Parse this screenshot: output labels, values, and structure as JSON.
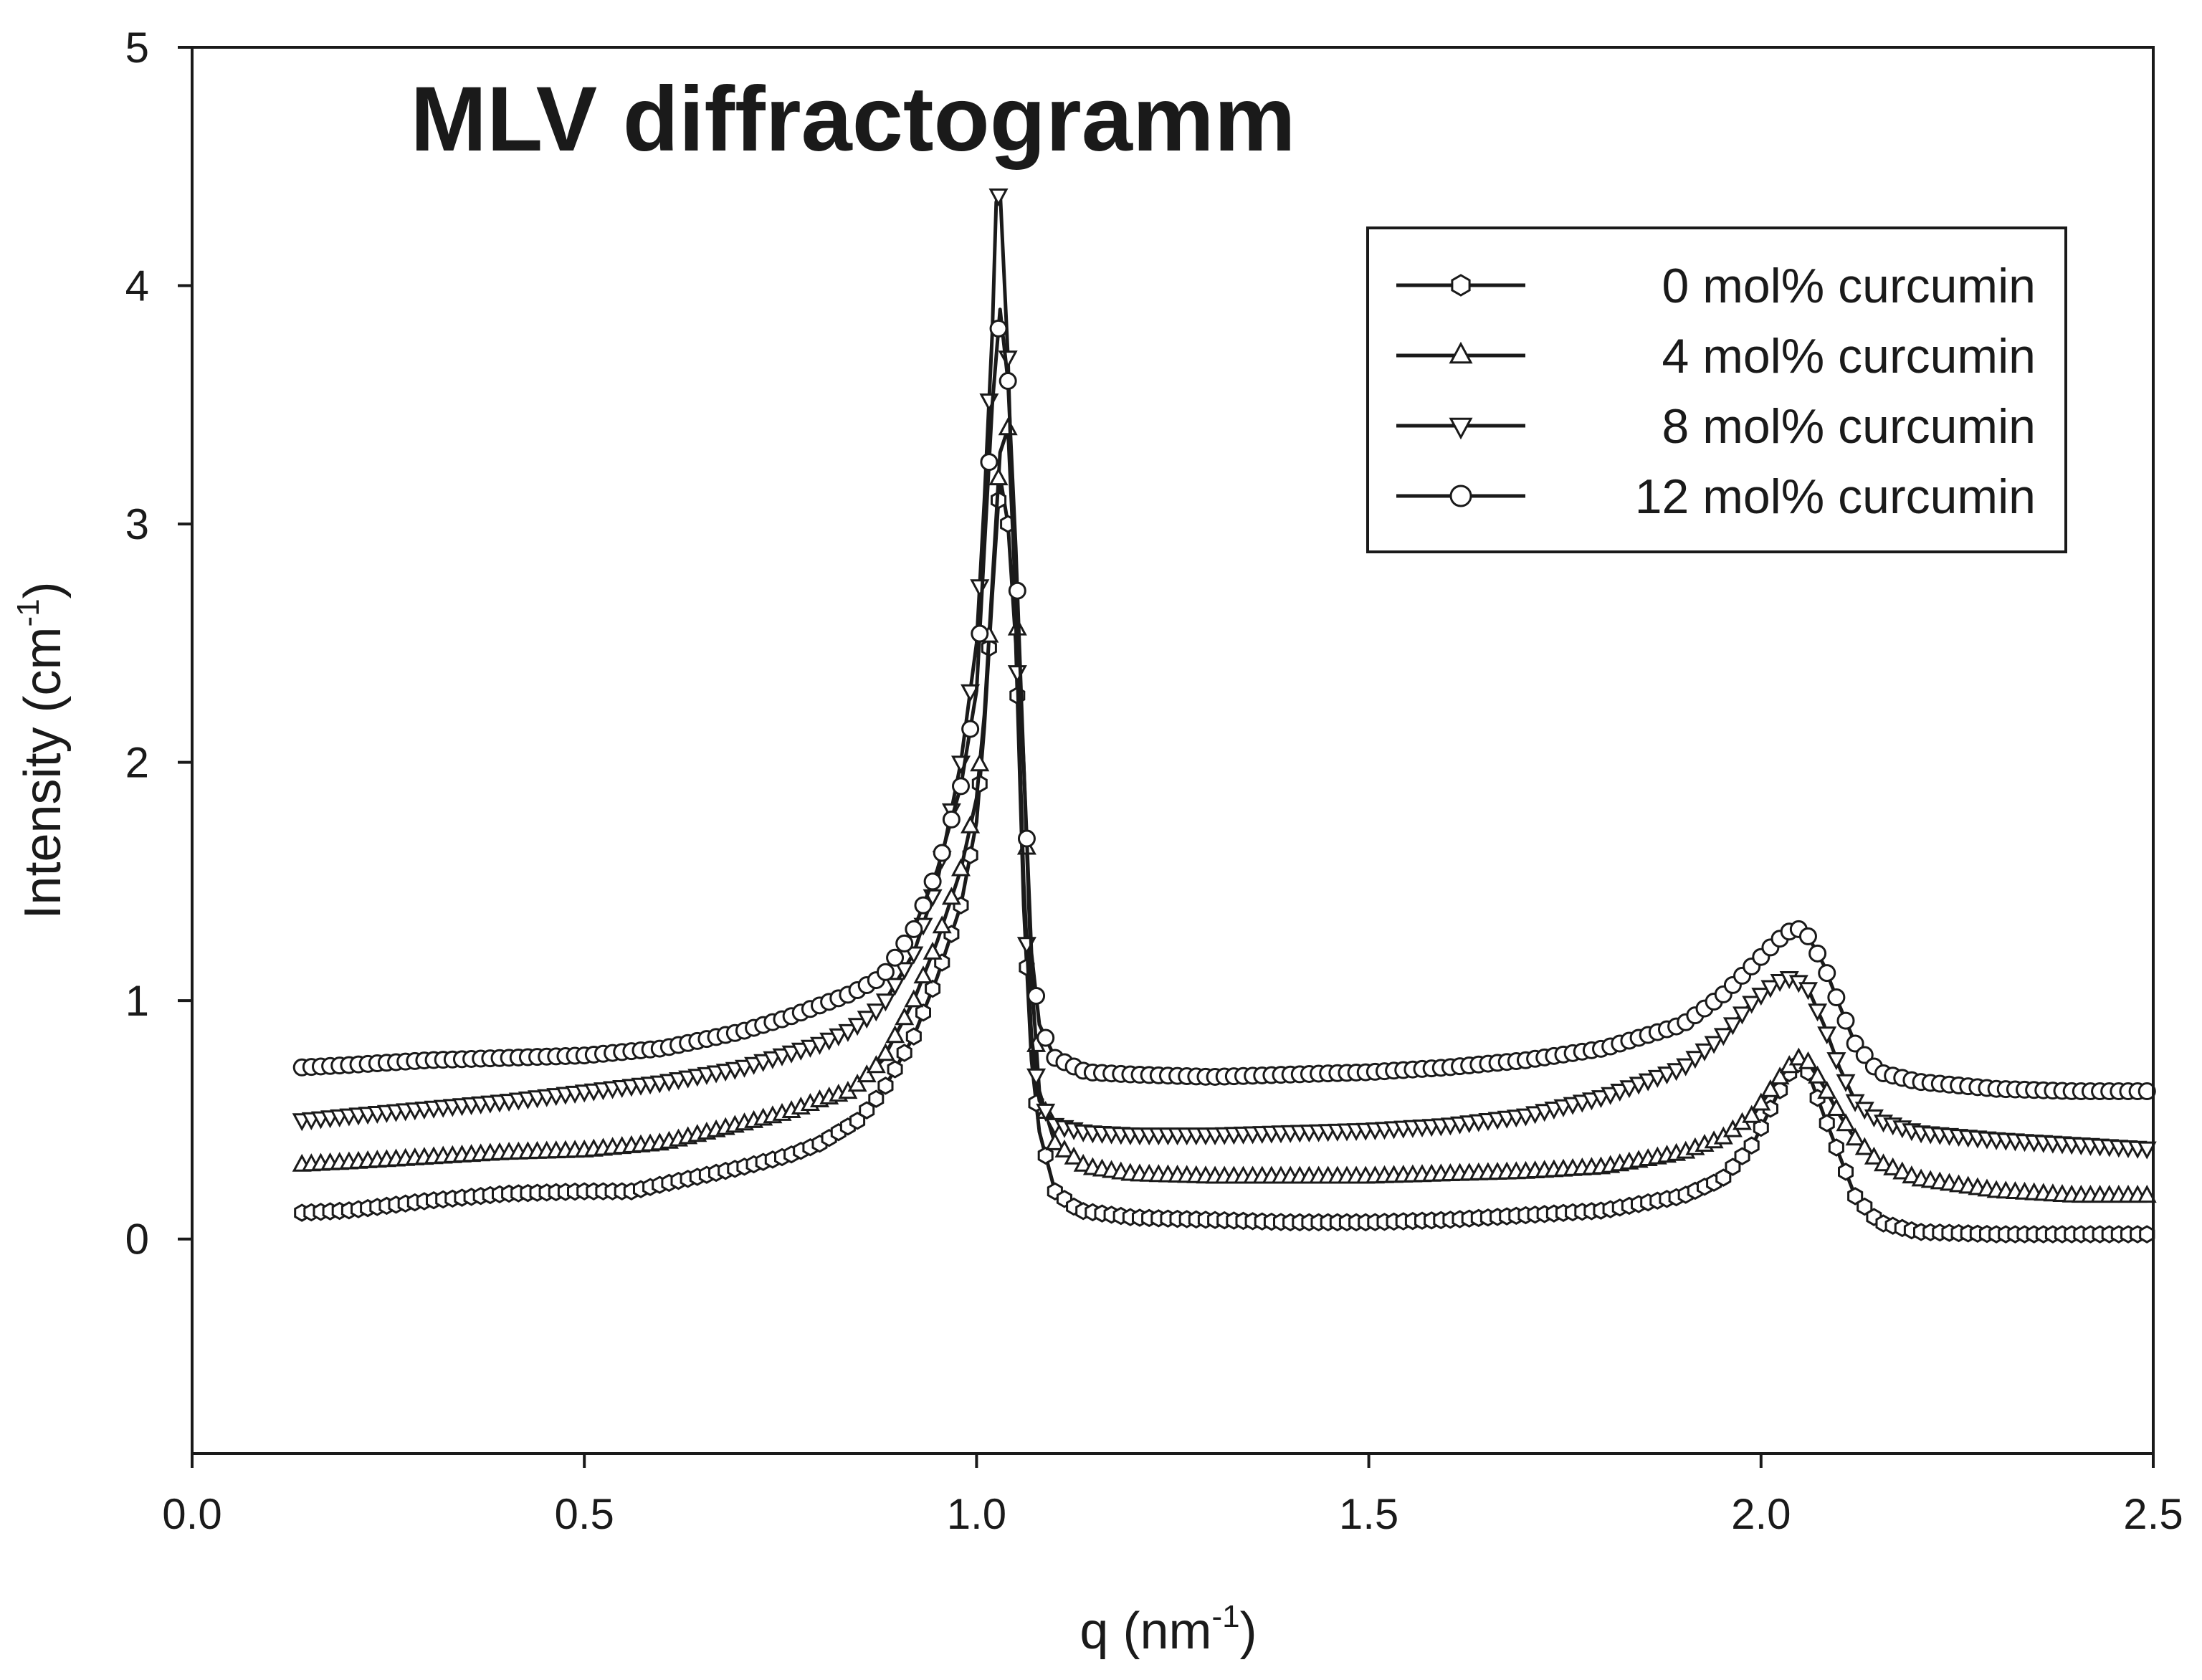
{
  "chart_data": {
    "type": "line",
    "title": "MLV diffractogramm",
    "xlabel": {
      "base": "q (nm",
      "sup": "-1",
      "close": ")"
    },
    "ylabel": {
      "base": "Intensity (cm",
      "sup": "-1",
      "close": ")"
    },
    "xlim": [
      0.0,
      2.5
    ],
    "ylim": [
      -0.9,
      5.0
    ],
    "xticks": [
      0.0,
      0.5,
      1.0,
      1.5,
      2.0,
      2.5
    ],
    "xtick_labels": [
      "0.0",
      "0.5",
      "1.0",
      "1.5",
      "2.0",
      "2.5"
    ],
    "yticks": [
      0,
      1,
      2,
      3,
      4,
      5
    ],
    "ytick_labels": [
      "0",
      "1",
      "2",
      "3",
      "4",
      "5"
    ],
    "grid": false,
    "legend_position": "top-right",
    "colors": {
      "line": "#1a1a1a",
      "background": "#ffffff"
    },
    "series": [
      {
        "name": "0 mol% curcumin",
        "marker": "hexagon-open",
        "x": [
          0.14,
          0.2,
          0.3,
          0.4,
          0.5,
          0.56,
          0.6,
          0.7,
          0.76,
          0.8,
          0.85,
          0.88,
          0.92,
          0.95,
          0.98,
          1.0,
          1.01,
          1.02,
          1.03,
          1.04,
          1.05,
          1.06,
          1.07,
          1.08,
          1.1,
          1.13,
          1.2,
          1.3,
          1.4,
          1.5,
          1.6,
          1.7,
          1.8,
          1.9,
          1.95,
          1.99,
          2.02,
          2.04,
          2.05,
          2.06,
          2.08,
          2.1,
          2.12,
          2.15,
          2.2,
          2.3,
          2.4,
          2.5
        ],
        "y": [
          0.11,
          0.12,
          0.16,
          0.19,
          0.2,
          0.2,
          0.23,
          0.3,
          0.35,
          0.4,
          0.5,
          0.62,
          0.85,
          1.1,
          1.4,
          1.75,
          2.15,
          2.7,
          3.2,
          3.0,
          2.5,
          1.4,
          0.75,
          0.45,
          0.2,
          0.12,
          0.09,
          0.08,
          0.07,
          0.07,
          0.08,
          0.1,
          0.12,
          0.18,
          0.25,
          0.4,
          0.6,
          0.72,
          0.74,
          0.7,
          0.52,
          0.35,
          0.18,
          0.07,
          0.03,
          0.02,
          0.02,
          0.02
        ]
      },
      {
        "name": "4 mol% curcumin",
        "marker": "triangle-up-open",
        "x": [
          0.14,
          0.2,
          0.3,
          0.4,
          0.5,
          0.6,
          0.7,
          0.76,
          0.8,
          0.84,
          0.88,
          0.92,
          0.95,
          0.98,
          1.0,
          1.01,
          1.02,
          1.03,
          1.04,
          1.05,
          1.06,
          1.07,
          1.08,
          1.1,
          1.14,
          1.2,
          1.3,
          1.4,
          1.5,
          1.6,
          1.7,
          1.8,
          1.9,
          1.95,
          1.99,
          2.02,
          2.04,
          2.05,
          2.06,
          2.08,
          2.1,
          2.12,
          2.15,
          2.2,
          2.3,
          2.4,
          2.5
        ],
        "y": [
          0.31,
          0.32,
          0.34,
          0.36,
          0.37,
          0.4,
          0.48,
          0.53,
          0.58,
          0.62,
          0.75,
          1.0,
          1.25,
          1.55,
          1.85,
          2.2,
          2.75,
          3.3,
          3.4,
          2.7,
          2.0,
          1.1,
          0.62,
          0.4,
          0.3,
          0.27,
          0.26,
          0.26,
          0.26,
          0.27,
          0.28,
          0.3,
          0.36,
          0.42,
          0.52,
          0.66,
          0.74,
          0.76,
          0.74,
          0.64,
          0.52,
          0.42,
          0.32,
          0.25,
          0.2,
          0.18,
          0.18
        ]
      },
      {
        "name": "8 mol% curcumin",
        "marker": "triangle-down-open",
        "x": [
          0.14,
          0.2,
          0.3,
          0.4,
          0.5,
          0.6,
          0.7,
          0.76,
          0.8,
          0.84,
          0.88,
          0.92,
          0.95,
          0.98,
          1.0,
          1.01,
          1.02,
          1.025,
          1.03,
          1.04,
          1.05,
          1.06,
          1.07,
          1.08,
          1.1,
          1.14,
          1.2,
          1.3,
          1.4,
          1.5,
          1.6,
          1.7,
          1.8,
          1.9,
          1.95,
          1.99,
          2.02,
          2.04,
          2.06,
          2.08,
          2.1,
          2.12,
          2.15,
          2.2,
          2.3,
          2.4,
          2.5
        ],
        "y": [
          0.5,
          0.52,
          0.55,
          0.58,
          0.62,
          0.66,
          0.72,
          0.78,
          0.82,
          0.88,
          0.98,
          1.2,
          1.5,
          2.0,
          2.5,
          3.1,
          3.8,
          4.35,
          4.4,
          3.7,
          2.6,
          1.5,
          0.85,
          0.58,
          0.48,
          0.45,
          0.44,
          0.44,
          0.45,
          0.46,
          0.48,
          0.52,
          0.6,
          0.72,
          0.85,
          1.0,
          1.08,
          1.1,
          1.05,
          0.9,
          0.72,
          0.58,
          0.5,
          0.45,
          0.42,
          0.4,
          0.38
        ]
      },
      {
        "name": "12 mol% curcumin",
        "marker": "circle-open",
        "x": [
          0.14,
          0.2,
          0.3,
          0.4,
          0.5,
          0.6,
          0.7,
          0.76,
          0.8,
          0.84,
          0.88,
          0.92,
          0.95,
          0.98,
          1.0,
          1.01,
          1.02,
          1.03,
          1.04,
          1.05,
          1.06,
          1.07,
          1.08,
          1.1,
          1.14,
          1.2,
          1.3,
          1.4,
          1.5,
          1.6,
          1.7,
          1.8,
          1.9,
          1.95,
          1.99,
          2.02,
          2.04,
          2.05,
          2.06,
          2.08,
          2.1,
          2.12,
          2.15,
          2.2,
          2.3,
          2.4,
          2.5
        ],
        "y": [
          0.72,
          0.73,
          0.75,
          0.76,
          0.77,
          0.8,
          0.87,
          0.93,
          0.98,
          1.03,
          1.1,
          1.3,
          1.55,
          1.9,
          2.3,
          2.9,
          3.5,
          3.9,
          3.6,
          2.9,
          2.0,
          1.2,
          0.9,
          0.76,
          0.7,
          0.69,
          0.68,
          0.69,
          0.7,
          0.72,
          0.75,
          0.8,
          0.9,
          1.02,
          1.15,
          1.25,
          1.3,
          1.3,
          1.27,
          1.15,
          0.98,
          0.82,
          0.7,
          0.66,
          0.63,
          0.62,
          0.62
        ]
      }
    ]
  }
}
